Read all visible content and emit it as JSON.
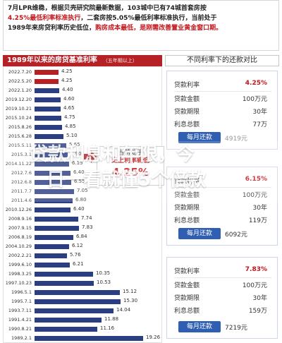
{
  "header": {
    "line1_a": "7月LPR维稳，根据贝壳研究院最新数据，",
    "line1_b": "103城中已有74城首套房按",
    "line2_a": "4.25%最低利率标准执行",
    "line2_b": "，二套房按5.05%最低利率标准执行，当前处于",
    "line3_a": "1989年来房贷利率历史低位，",
    "line3_b": "购房成本最低，是刚需改善置业黄金窗口期。"
  },
  "left_panel": {
    "title": "1989年以来的房贷基准利率",
    "subtitle": "（五年期以上）",
    "callout": {
      "line1": "当前处于",
      "line2": "史上利率新低",
      "value": "4.25%"
    },
    "chart_data": {
      "type": "bar",
      "title": "1989年以来的房贷基准利率",
      "subtitle": "（五年期以上）",
      "categories": [
        "2022.7.20",
        "2022.5.20",
        "2022.1.20",
        "2019.12.20",
        "2019.10.21",
        "2015.10.24",
        "2015.8.26",
        "2015.6.28",
        "2015.5.11",
        "2015.3.1",
        "2014.11.22",
        "2012.7.6",
        "2012.6.8",
        "2011.7.7",
        "2011.4.6",
        "2010.12.26",
        "2008.9.16",
        "2007.9.15",
        "2006.8.19",
        "2004.10.29",
        "2002.2.21",
        "1999.6.10",
        "1998.3.25",
        "1997.10.23",
        "1996.5.1",
        "1995.7.1",
        "1993.7.11",
        "1991.4.21",
        "1990.8.21",
        "1989.2.1"
      ],
      "values": [
        4.25,
        4.25,
        4.4,
        4.6,
        4.65,
        4.75,
        4.85,
        5.1,
        5.65,
        5.9,
        6.15,
        6.4,
        6.55,
        7.05,
        6.8,
        6.4,
        7.74,
        7.83,
        6.84,
        6.12,
        5.76,
        6.21,
        10.35,
        10.53,
        15.12,
        15.3,
        14.04,
        11.88,
        11.16,
        19.26
      ],
      "highlight": [
        0,
        1
      ],
      "visible_labels": {
        "0": "4.25",
        "1": "4.25",
        "2": "4.40",
        "3": "4.60",
        "4": "4.65",
        "5": "4.75",
        "6": "4.85",
        "7": "5.10",
        "8": "5.65",
        "9": "5.90",
        "10": "6.15",
        "11": "6.40",
        "12": "6.55",
        "13": "7.05",
        "14": "6.80",
        "15": "6.40",
        "16": "7.74",
        "17": "7.83",
        "18": "6.84",
        "19": "6.12",
        "20": "5.76",
        "21": "6.21",
        "22": "10.35",
        "23": "10.53",
        "24": "15.12",
        "25": "15.30",
        "26": "14.04",
        "27": "11.88",
        "28": "11.16",
        "29": "19.26"
      },
      "xlim": [
        0,
        20
      ],
      "colors": {
        "normal": "#2b3e82",
        "highlight": "#b62126"
      }
    }
  },
  "right_panel": {
    "title": "不同利率下的还款对比",
    "cards": [
      {
        "rate_label": "贷款利率",
        "rate_value": "4.25%",
        "amount_label": "贷款金额",
        "amount_value": "100万元",
        "term_label": "贷款期限",
        "term_value": "30年",
        "interest_label": "利息总额",
        "interest_value": "77万",
        "pay_label": "每月还款",
        "pay_value": "4919元",
        "pay_faded": true
      },
      {
        "rate_label": "贷款利率",
        "rate_value": "6.15%",
        "amount_label": "贷款金额",
        "amount_value": "100万元",
        "term_label": "贷款期限",
        "term_value": "30年",
        "interest_label": "利息总额",
        "interest_value": "119万",
        "pay_label": "每月还款",
        "pay_value": "6092元",
        "pay_faded": false
      },
      {
        "rate_label": "贷款利率",
        "rate_value": "7.83%",
        "amount_label": "贷款金额",
        "amount_value": "100万元",
        "term_label": "贷款期限",
        "term_value": "30年",
        "interest_label": "利息总额",
        "interest_value": "159万",
        "pay_label": "每月还款",
        "pay_value": "7219元",
        "pay_faded": false
      }
    ]
  },
  "overlay": {
    "line1": "贷款利息和年限，今",
    "line2": "日一看就懂5个倍款"
  },
  "colors": {
    "accent_red": "#b62126",
    "accent_blue": "#2b3e82",
    "button_blue": "#2f5fb3"
  }
}
